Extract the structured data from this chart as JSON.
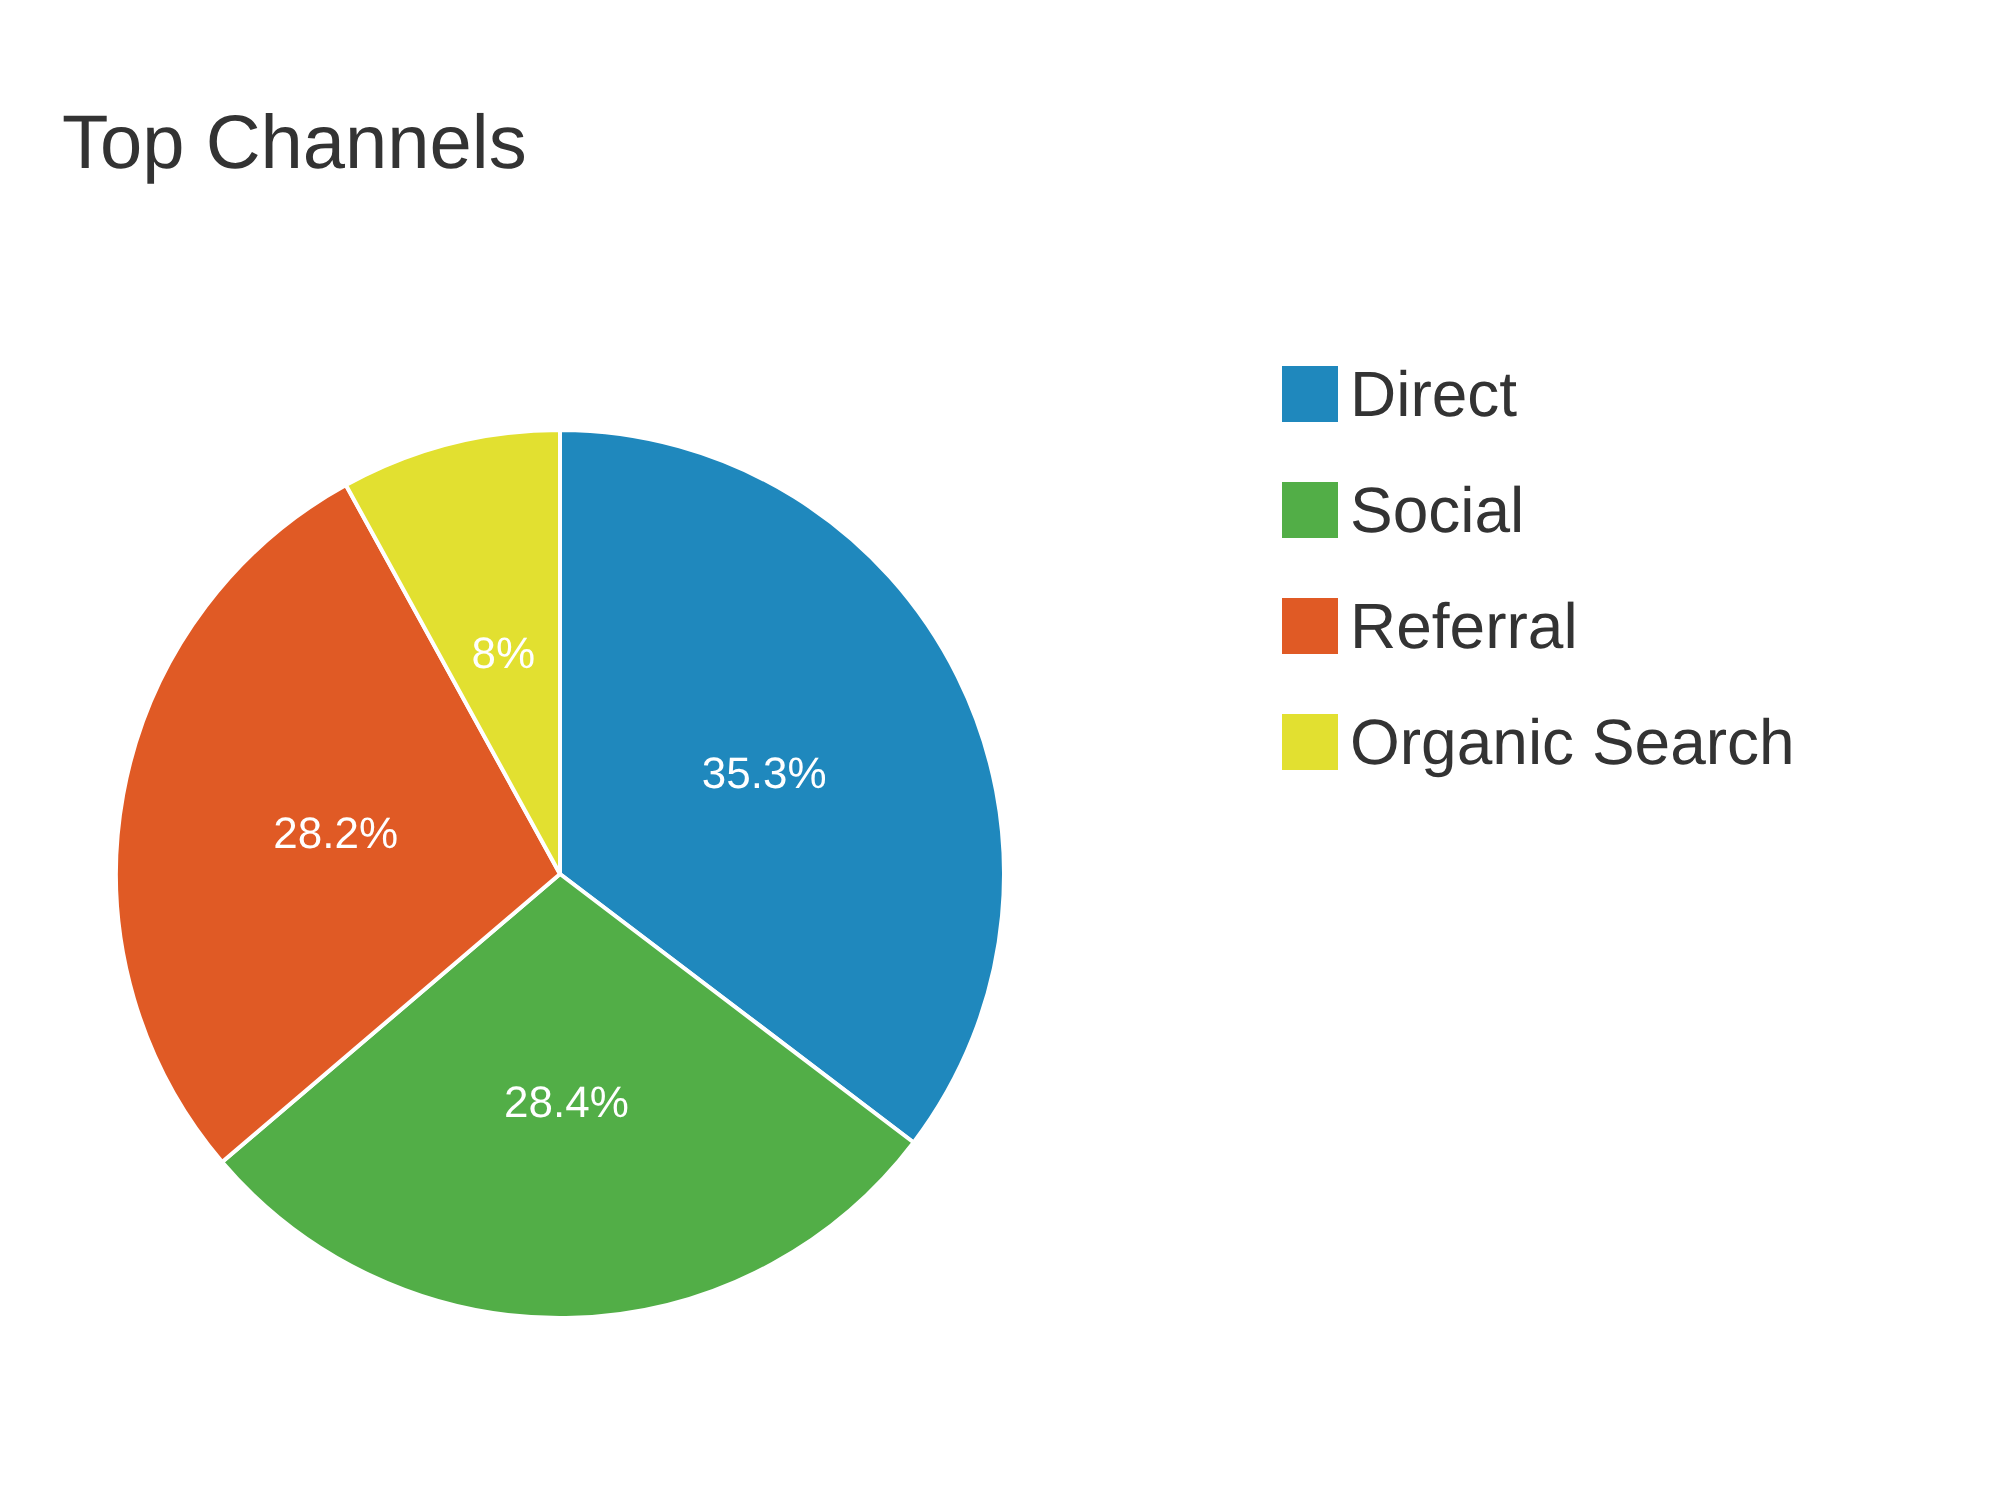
{
  "chart_data": {
    "type": "pie",
    "title": "Top Channels",
    "categories": [
      "Direct",
      "Social",
      "Referral",
      "Organic Search"
    ],
    "values": [
      35.3,
      28.4,
      28.2,
      8
    ],
    "colors": [
      "#1f88bd",
      "#52ae47",
      "#e05a25",
      "#e2e030"
    ],
    "value_labels": [
      "35.3%",
      "28.4%",
      "28.2%",
      "8%"
    ],
    "legend": "right"
  }
}
